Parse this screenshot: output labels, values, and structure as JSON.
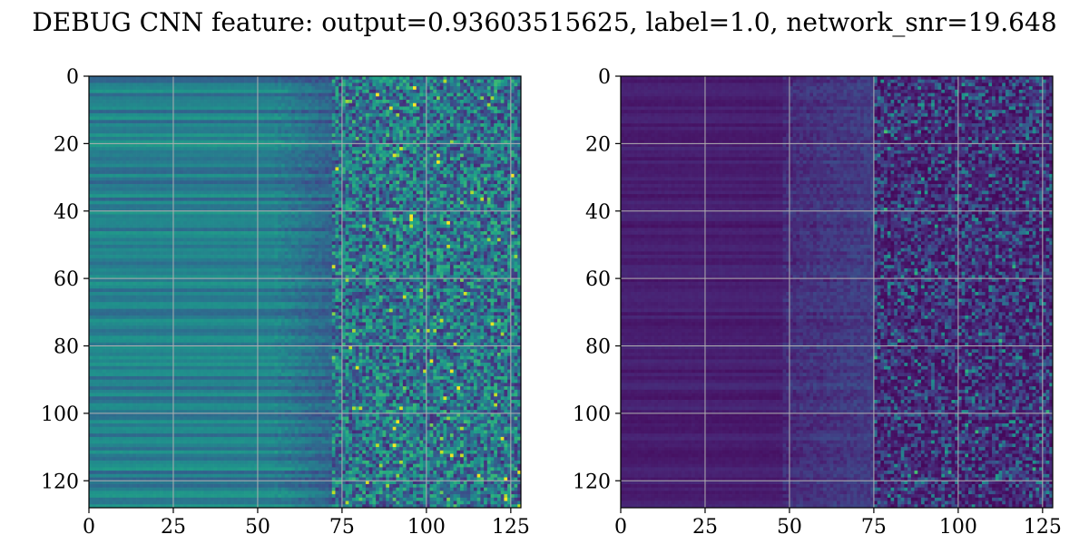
{
  "title": "DEBUG CNN feature: output=0.93603515625, label=1.0, network_snr=19.648",
  "chart_data": [
    {
      "type": "heatmap",
      "colormap": "viridis",
      "shape": [
        128,
        128
      ],
      "xlim": [
        0,
        128
      ],
      "ylim": [
        128,
        0
      ],
      "x_ticks": [
        0,
        25,
        50,
        75,
        100,
        125
      ],
      "y_ticks": [
        0,
        20,
        40,
        60,
        80,
        100,
        120
      ],
      "x_tick_labels": [
        "0",
        "25",
        "50",
        "75",
        "100",
        "125"
      ],
      "y_tick_labels": [
        "0",
        "20",
        "40",
        "60",
        "80",
        "100",
        "120"
      ],
      "grid": true,
      "title": "",
      "xlabel": "",
      "ylabel": ""
    },
    {
      "type": "heatmap",
      "colormap": "viridis",
      "shape": [
        128,
        128
      ],
      "xlim": [
        0,
        128
      ],
      "ylim": [
        128,
        0
      ],
      "x_ticks": [
        0,
        25,
        50,
        75,
        100,
        125
      ],
      "y_ticks": [
        0,
        20,
        40,
        60,
        80,
        100,
        120
      ],
      "x_tick_labels": [
        "0",
        "25",
        "50",
        "75",
        "100",
        "125"
      ],
      "y_tick_labels": [
        "0",
        "20",
        "40",
        "60",
        "80",
        "100",
        "120"
      ],
      "grid": true,
      "title": "",
      "xlabel": "",
      "ylabel": ""
    }
  ]
}
